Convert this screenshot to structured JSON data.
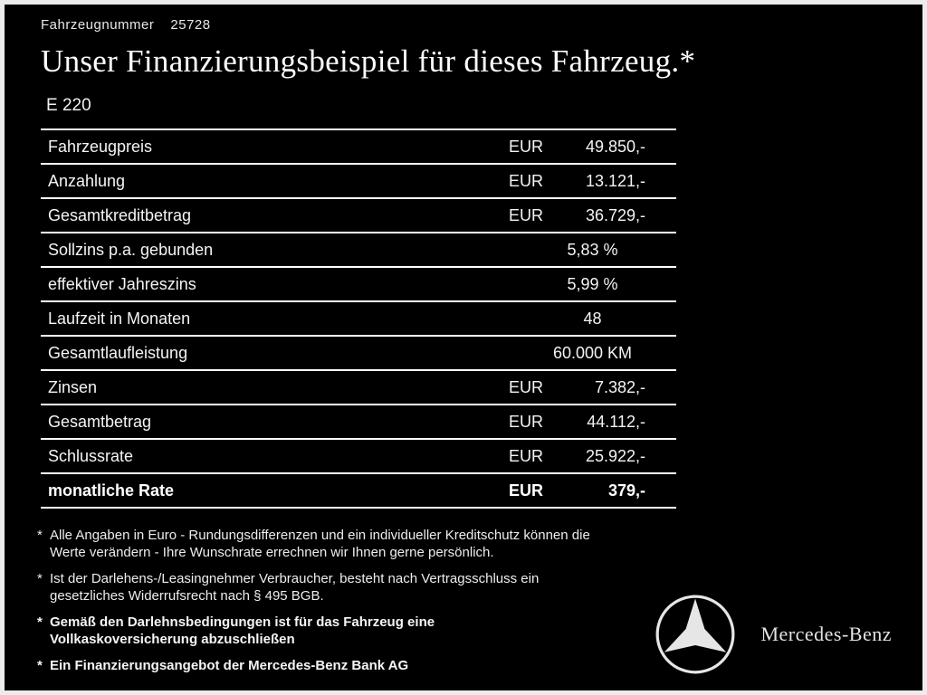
{
  "page": {
    "vehicle_number_label": "Fahrzeugnummer",
    "vehicle_number": "25728",
    "title": "Unser Finanzierungsbeispiel für dieses Fahrzeug.*",
    "model": "E 220"
  },
  "table": {
    "rows": [
      {
        "label": "Fahrzeugpreis",
        "currency": "EUR",
        "value": "49.850,-",
        "bold": false
      },
      {
        "label": "Anzahlung",
        "currency": "EUR",
        "value": "13.121,-",
        "bold": false
      },
      {
        "label": "Gesamtkreditbetrag",
        "currency": "EUR",
        "value": "36.729,-",
        "bold": false
      },
      {
        "label": "Sollzins p.a. gebunden",
        "currency": "",
        "value": "5,83 %",
        "bold": false
      },
      {
        "label": "effektiver Jahreszins",
        "currency": "",
        "value": "5,99 %",
        "bold": false
      },
      {
        "label": "Laufzeit in Monaten",
        "currency": "",
        "value": "48",
        "bold": false
      },
      {
        "label": "Gesamtlaufleistung",
        "currency": "",
        "value": "60.000 KM",
        "bold": false
      },
      {
        "label": "Zinsen",
        "currency": "EUR",
        "value": "7.382,-",
        "bold": false
      },
      {
        "label": "Gesamtbetrag",
        "currency": "EUR",
        "value": "44.112,-",
        "bold": false
      },
      {
        "label": "Schlussrate",
        "currency": "EUR",
        "value": "25.922,-",
        "bold": false
      },
      {
        "label": "monatliche Rate",
        "currency": "EUR",
        "value": "379,-",
        "bold": true
      }
    ]
  },
  "footnotes": [
    {
      "marker": "*",
      "bold": false,
      "text": "Alle Angaben in Euro - Rundungsdifferenzen und ein individueller Kreditschutz können die\nWerte verändern - Ihre Wunschrate errechnen wir Ihnen gerne persönlich."
    },
    {
      "marker": "*",
      "bold": false,
      "text": "Ist der Darlehens-/Leasingnehmer Verbraucher, besteht nach Vertragsschluss ein\ngesetzliches Widerrufsrecht nach § 495 BGB."
    },
    {
      "marker": "*",
      "bold": true,
      "text": "Gemäß den Darlehnsbedingungen ist für das Fahrzeug eine\nVollkaskoversicherung abzuschließen"
    },
    {
      "marker": "*",
      "bold": true,
      "text": "Ein Finanzierungsangebot der Mercedes-Benz Bank AG"
    }
  ],
  "brand": {
    "logo": "mercedes-star-icon",
    "name": "Mercedes-Benz"
  },
  "colors": {
    "background": "#000000",
    "text": "#ffffff",
    "frame": "#ececec",
    "divider_line": "#ffffff"
  }
}
